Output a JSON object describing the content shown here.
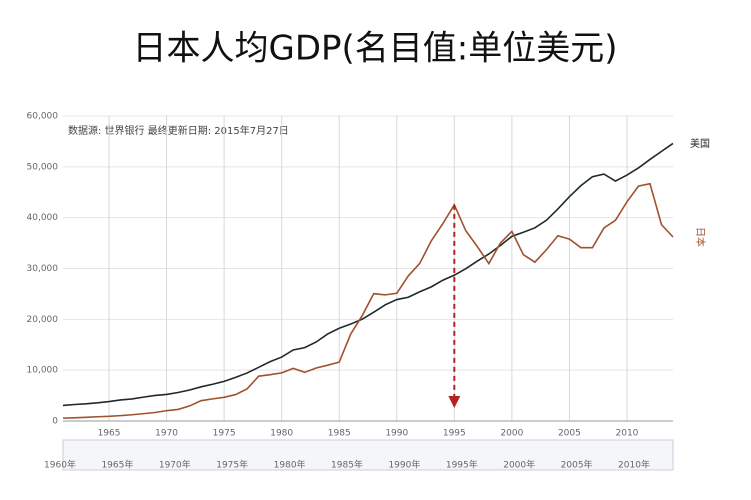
{
  "chart_data": {
    "type": "line",
    "title": "日本人均GDP(名目值:单位美元)",
    "annotation": "数据源: 世界银行 最终更新日期: 2015年7月27日",
    "x": [
      1961,
      1962,
      1963,
      1964,
      1965,
      1966,
      1967,
      1968,
      1969,
      1970,
      1971,
      1972,
      1973,
      1974,
      1975,
      1976,
      1977,
      1978,
      1979,
      1980,
      1981,
      1982,
      1983,
      1984,
      1985,
      1986,
      1987,
      1988,
      1989,
      1990,
      1991,
      1992,
      1993,
      1994,
      1995,
      1996,
      1997,
      1998,
      1999,
      2000,
      2001,
      2002,
      2003,
      2004,
      2005,
      2006,
      2007,
      2008,
      2009,
      2010,
      2011,
      2012,
      2013,
      2014
    ],
    "series": [
      {
        "name": "美国",
        "color": "#1f2a2a",
        "values": [
          3066,
          3243,
          3377,
          3574,
          3828,
          4146,
          4336,
          4696,
          5032,
          5234,
          5609,
          6094,
          6726,
          7226,
          7801,
          8592,
          9453,
          10565,
          11674,
          12575,
          13976,
          14434,
          15544,
          17121,
          18237,
          19071,
          20039,
          21417,
          22857,
          23889,
          24342,
          25419,
          26387,
          27695,
          28691,
          29968,
          31459,
          32854,
          34515,
          36330,
          37134,
          37998,
          39490,
          41725,
          44123,
          46302,
          48050,
          48570,
          47195,
          48374,
          49782,
          51457,
          53042,
          54600
        ]
      },
      {
        "name": "日本",
        "color": "#a0522d",
        "values": [
          564,
          634,
          718,
          835,
          919,
          1059,
          1229,
          1451,
          1669,
          2037,
          2272,
          2967,
          3997,
          4354,
          4659,
          5198,
          6335,
          8821,
          9105,
          9463,
          10361,
          9578,
          10425,
          10984,
          11584,
          17112,
          20745,
          25051,
          24813,
          25124,
          28541,
          31014,
          35452,
          38815,
          42522,
          37423,
          34304,
          30969,
          35004,
          37300,
          32716,
          31236,
          33691,
          36442,
          35781,
          34102,
          34095,
          37972,
          39473,
          43118,
          46204,
          46679,
          38634,
          36194
        ]
      }
    ],
    "xlim": [
      1961,
      2014
    ],
    "xticks": [
      1965,
      1970,
      1975,
      1980,
      1985,
      1990,
      1995,
      2000,
      2005,
      2010
    ],
    "ylim": [
      0,
      60000
    ],
    "yticks": [
      0,
      {
        "value": 10000,
        "label": "10,000"
      },
      {
        "value": 20000,
        "label": "20,000"
      },
      {
        "value": 30000,
        "label": "30,000"
      },
      {
        "value": 40000,
        "label": "40,000"
      },
      {
        "value": 50000,
        "label": "50,000"
      },
      {
        "value": 60000,
        "label": "60,000"
      }
    ],
    "grid": true,
    "navigator_labels": [
      "1960年",
      "1965年",
      "1970年",
      "1975年",
      "1980年",
      "1985年",
      "1990年",
      "1995年",
      "2000年",
      "2005年",
      "2010年"
    ]
  }
}
